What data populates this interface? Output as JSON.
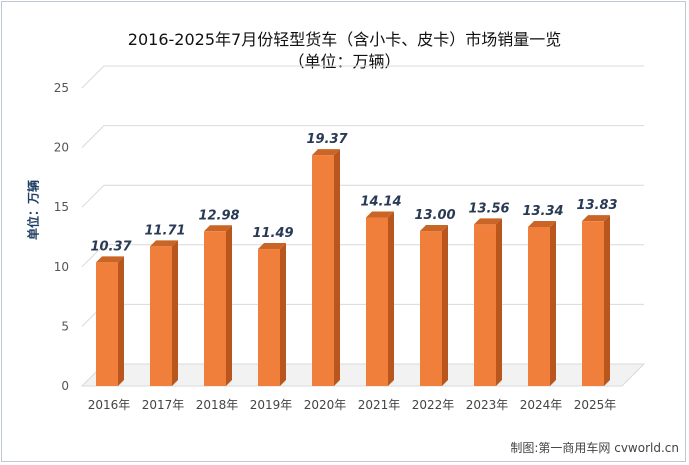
{
  "chart_data": {
    "type": "bar",
    "title": "2016-2025年7月份轻型货车（含小卡、皮卡）市场销量一览",
    "subtitle": "（单位：万辆）",
    "xlabel": "",
    "ylabel": "单位：万辆",
    "categories": [
      "2016年",
      "2017年",
      "2018年",
      "2019年",
      "2020年",
      "2021年",
      "2022年",
      "2023年",
      "2024年",
      "2025年"
    ],
    "values": [
      10.37,
      11.71,
      12.98,
      11.49,
      19.37,
      14.14,
      13.0,
      13.56,
      13.34,
      13.83
    ],
    "value_labels": [
      "10.37",
      "11.71",
      "12.98",
      "11.49",
      "19.37",
      "14.14",
      "13.00",
      "13.56",
      "13.34",
      "13.83"
    ],
    "ylim": [
      0,
      25
    ],
    "yticks": [
      "0",
      "5",
      "10",
      "15",
      "20",
      "25"
    ],
    "grid": true,
    "legend": "none",
    "bar_color": "#f07f3c",
    "bar_side_color": "#b8561d",
    "bar_top_color": "#c96526",
    "label_color": "#2a3a55"
  },
  "credit": "制图:第一商用车网 cvworld.cn"
}
